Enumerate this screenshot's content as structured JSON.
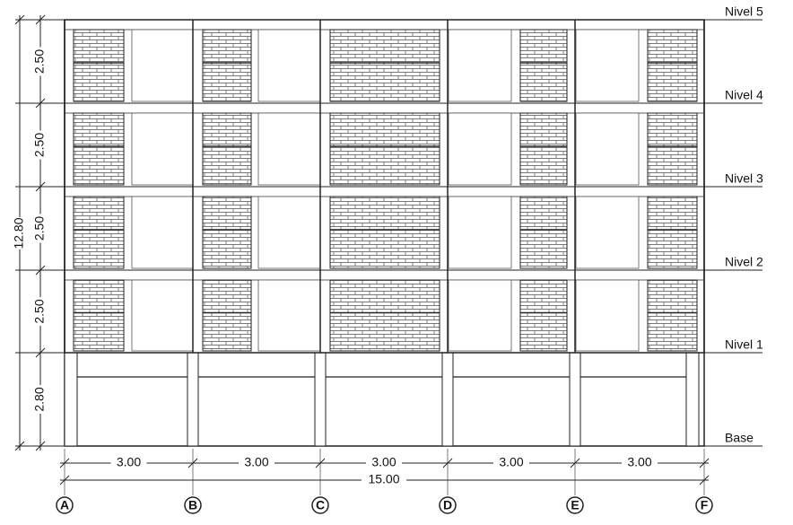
{
  "levels": [
    "Nivel 5",
    "Nivel 4",
    "Nivel 3",
    "Nivel 2",
    "Nivel 1",
    "Base"
  ],
  "floor_heights": [
    "2.50",
    "2.50",
    "2.50",
    "2.50",
    "2.80"
  ],
  "total_height": "12.80",
  "bay_widths": [
    "3.00",
    "3.00",
    "3.00",
    "3.00",
    "3.00"
  ],
  "total_width": "15.00",
  "axes": [
    "A",
    "B",
    "C",
    "D",
    "E",
    "F"
  ]
}
